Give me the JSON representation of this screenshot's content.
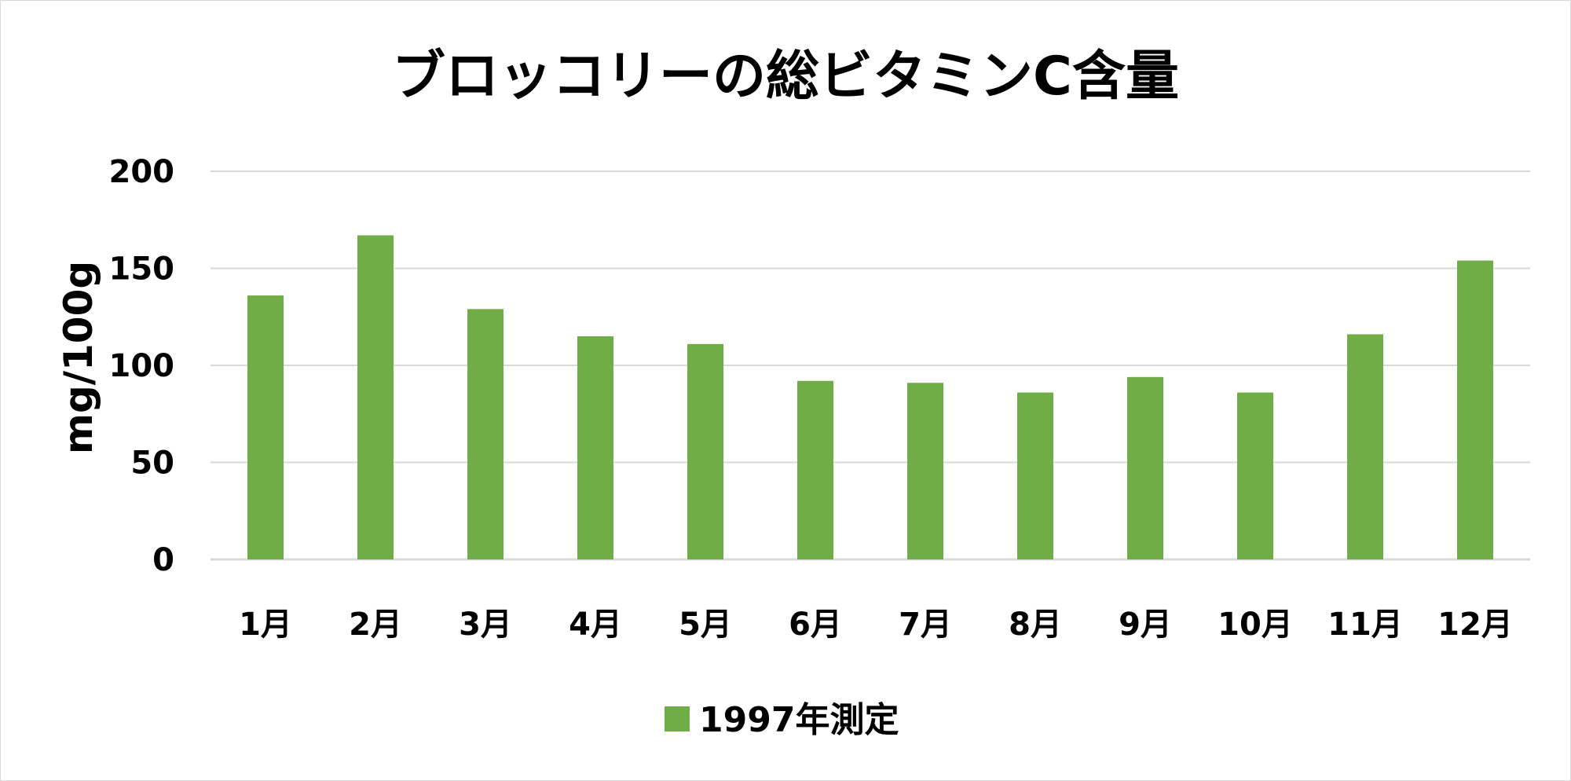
{
  "chart_data": {
    "type": "bar",
    "title": "ブロッコリーの総ビタミンC含量",
    "ylabel": "mg/100g",
    "xlabel": "",
    "categories": [
      "1月",
      "2月",
      "3月",
      "4月",
      "5月",
      "6月",
      "7月",
      "8月",
      "9月",
      "10月",
      "11月",
      "12月"
    ],
    "series": [
      {
        "name": "1997年測定",
        "values": [
          136,
          167,
          129,
          115,
          111,
          92,
          91,
          86,
          94,
          86,
          116,
          154
        ],
        "color": "#70ad47"
      }
    ],
    "ylim": [
      0,
      200
    ],
    "yticks": [
      0,
      50,
      100,
      150,
      200
    ],
    "grid": true,
    "gridColor": "#d9d9d9",
    "legend": "bottom"
  }
}
